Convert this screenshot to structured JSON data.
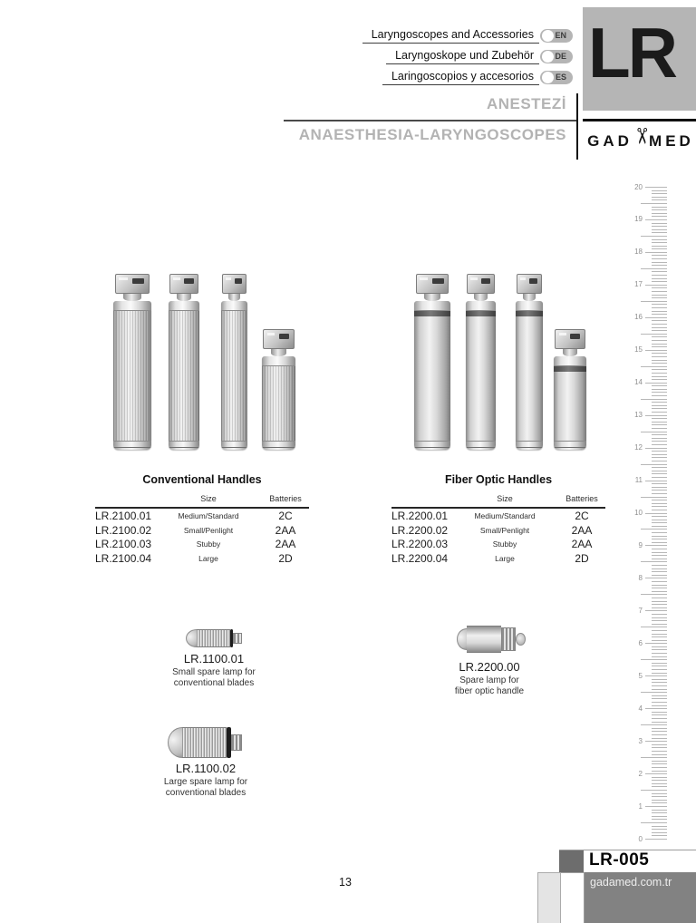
{
  "header": {
    "languages": [
      {
        "label": "Laryngoscopes and Accessories",
        "code": "EN"
      },
      {
        "label": "Laryngoskope und Zubehör",
        "code": "DE"
      },
      {
        "label": "Laringoscopios y accesorios",
        "code": "ES"
      }
    ],
    "category_code": "LR",
    "title_local": "ANESTEZİ",
    "title_main": "ANAESTHESIA-LARYNGOSCOPES",
    "brand_prefix": "GAD",
    "brand_suffix": "MED"
  },
  "tables": [
    {
      "title": "Conventional Handles",
      "col_size": "Size",
      "col_batteries": "Batteries",
      "rows": [
        {
          "code": "LR.2100.01",
          "size": "Medium/Standard",
          "batteries": "2C"
        },
        {
          "code": "LR.2100.02",
          "size": "Small/Penlight",
          "batteries": "2AA"
        },
        {
          "code": "LR.2100.03",
          "size": "Stubby",
          "batteries": "2AA"
        },
        {
          "code": "LR.2100.04",
          "size": "Large",
          "batteries": "2D"
        }
      ]
    },
    {
      "title": "Fiber Optic Handles",
      "col_size": "Size",
      "col_batteries": "Batteries",
      "rows": [
        {
          "code": "LR.2200.01",
          "size": "Medium/Standard",
          "batteries": "2C"
        },
        {
          "code": "LR.2200.02",
          "size": "Small/Penlight",
          "batteries": "2AA"
        },
        {
          "code": "LR.2200.03",
          "size": "Stubby",
          "batteries": "2AA"
        },
        {
          "code": "LR.2200.04",
          "size": "Large",
          "batteries": "2D"
        }
      ]
    }
  ],
  "lamps": [
    {
      "code": "LR.1100.01",
      "desc1": "Small spare lamp for",
      "desc2": "conventional blades"
    },
    {
      "code": "LR.1100.02",
      "desc1": "Large spare lamp for",
      "desc2": "conventional blades"
    },
    {
      "code": "LR.2200.00",
      "desc1": "Spare lamp for",
      "desc2": "fiber optic handle"
    }
  ],
  "ruler": {
    "unit_max": 20,
    "unit_min": 0
  },
  "footer": {
    "doc_code": "LR-005",
    "website": "gadamed.com.tr",
    "page_number": "13"
  },
  "colors": {
    "accent_gray": "#b5b5b5",
    "footer_gray": "#828282",
    "dark_square": "#6d6d6d"
  }
}
